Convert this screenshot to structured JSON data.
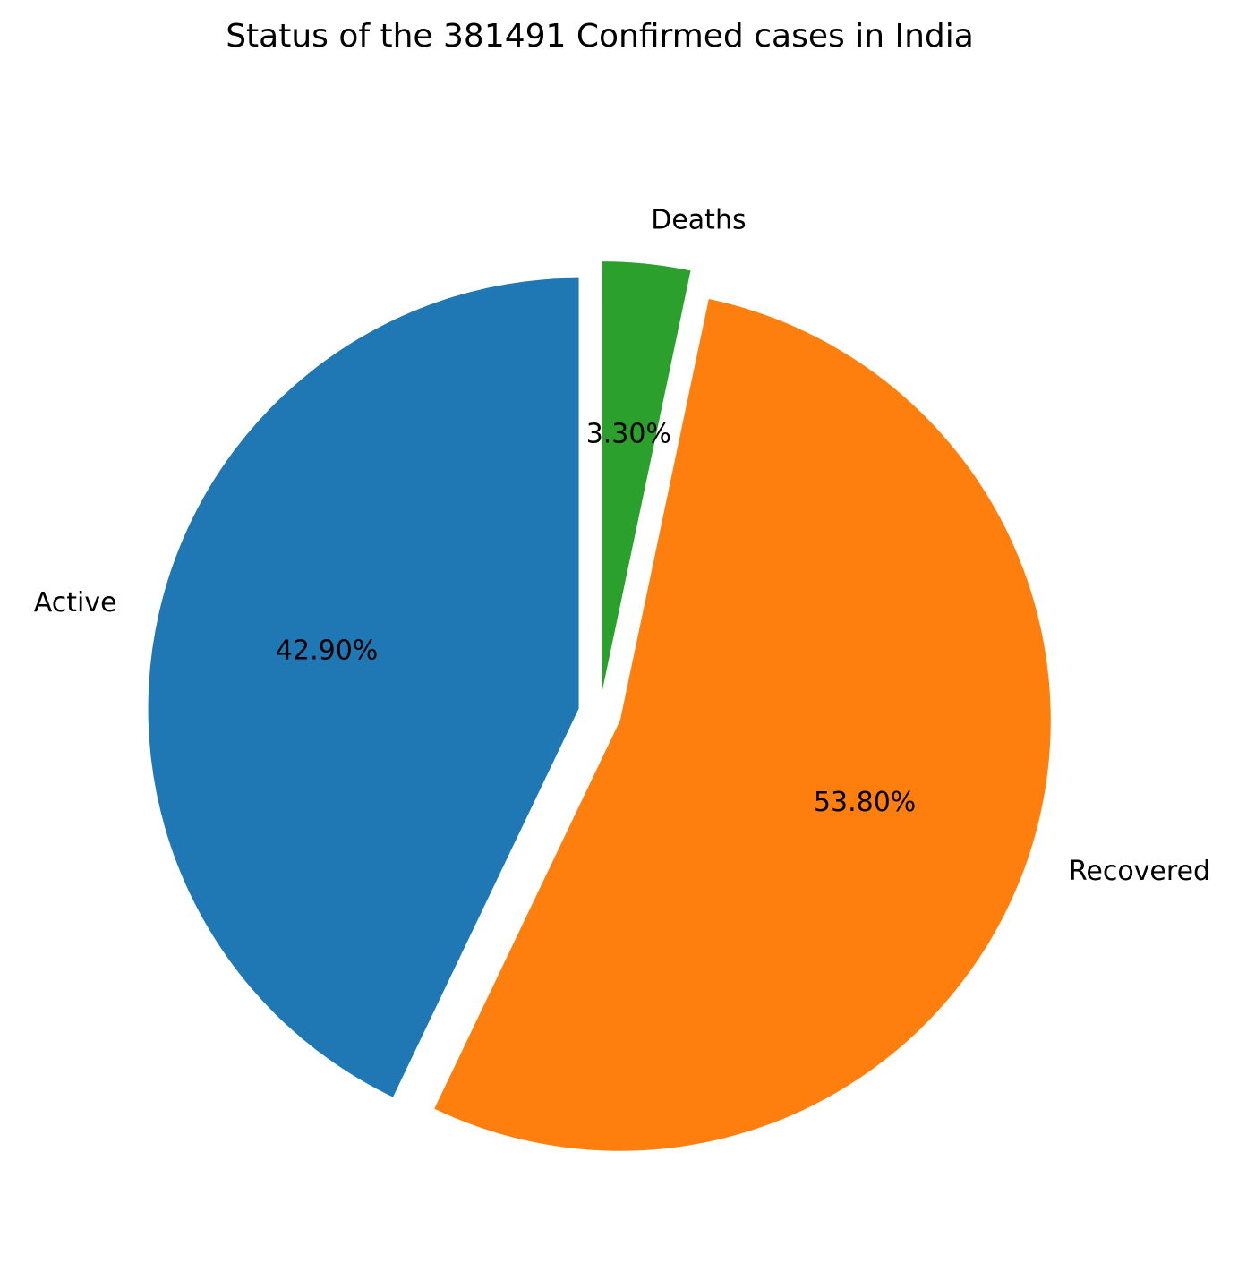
{
  "chart_data": {
    "type": "pie",
    "title": "Status of the 381491 Confirmed cases in India",
    "categories": [
      "Active",
      "Recovered",
      "Deaths"
    ],
    "values": [
      42.9,
      53.8,
      3.3
    ],
    "percent_labels": [
      "42.90%",
      "53.80%",
      "3.30%"
    ],
    "colors": [
      "#1f77b4",
      "#ff7f0e",
      "#2ca02c"
    ],
    "start_angle_deg": 90,
    "direction": "counterclockwise",
    "exploded": true,
    "legend": false
  }
}
